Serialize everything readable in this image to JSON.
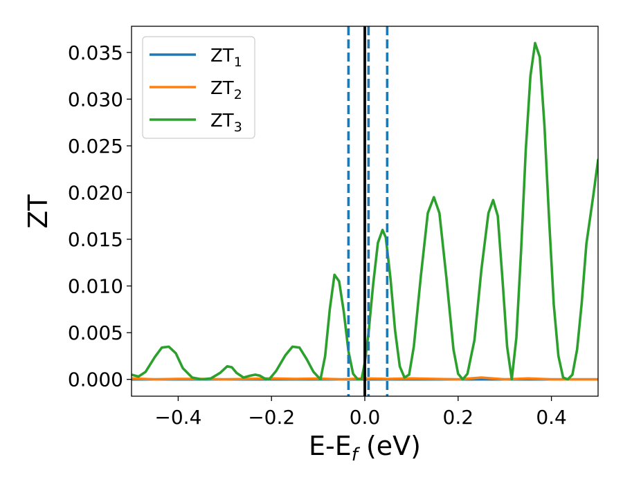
{
  "chart_data": {
    "type": "line",
    "xlabel": "E-E",
    "xlabel_sub": "f",
    "xlabel_unit": " (eV)",
    "ylabel": "ZT",
    "xlim": [
      -0.5,
      0.5
    ],
    "ylim": [
      -0.0018,
      0.0378
    ],
    "xticks": [
      -0.4,
      -0.2,
      0.0,
      0.2,
      0.4
    ],
    "xtick_labels": [
      "−0.4",
      "−0.2",
      "0.0",
      "0.2",
      "0.4"
    ],
    "yticks": [
      0.0,
      0.005,
      0.01,
      0.015,
      0.02,
      0.025,
      0.03,
      0.035
    ],
    "ytick_labels": [
      "0.000",
      "0.005",
      "0.010",
      "0.015",
      "0.020",
      "0.025",
      "0.030",
      "0.035"
    ],
    "grid": false,
    "legend_position": "top-left",
    "legend": [
      {
        "base": "ZT",
        "sub": "1",
        "color": "#1f77b4"
      },
      {
        "base": "ZT",
        "sub": "2",
        "color": "#ff7f0e"
      },
      {
        "base": "ZT",
        "sub": "3",
        "color": "#2ca02c"
      }
    ],
    "vlines": [
      {
        "x": -0.035,
        "style": "dashed",
        "color": "#1f77b4"
      },
      {
        "x": 0.008,
        "style": "dashed",
        "color": "#1f77b4"
      },
      {
        "x": 0.048,
        "style": "dashed",
        "color": "#1f77b4"
      },
      {
        "x": 0.0,
        "style": "solid",
        "color": "#000000"
      }
    ],
    "series": [
      {
        "name": "ZT₁",
        "color": "#1f77b4",
        "x": [
          -0.5,
          0.5
        ],
        "y": [
          0.0,
          0.0
        ]
      },
      {
        "name": "ZT₂",
        "color": "#ff7f0e",
        "x": [
          -0.5,
          -0.45,
          -0.4,
          -0.35,
          -0.3,
          -0.25,
          -0.2,
          -0.15,
          -0.1,
          -0.05,
          0.0,
          0.05,
          0.1,
          0.15,
          0.2,
          0.25,
          0.3,
          0.35,
          0.4,
          0.45,
          0.5
        ],
        "y": [
          0.0001,
          0.0,
          5e-05,
          5e-05,
          0.0,
          5e-05,
          0.0001,
          5e-05,
          8e-05,
          0.0,
          0.0001,
          5e-05,
          0.0001,
          5e-05,
          0.0,
          0.0002,
          0.0,
          0.0001,
          0.0,
          0.0,
          0.0
        ]
      },
      {
        "name": "ZT₃",
        "color": "#2ca02c",
        "x": [
          -0.5,
          -0.485,
          -0.47,
          -0.45,
          -0.435,
          -0.42,
          -0.405,
          -0.39,
          -0.37,
          -0.35,
          -0.33,
          -0.31,
          -0.295,
          -0.285,
          -0.275,
          -0.26,
          -0.245,
          -0.235,
          -0.225,
          -0.215,
          -0.205,
          -0.19,
          -0.17,
          -0.155,
          -0.14,
          -0.125,
          -0.11,
          -0.095,
          -0.085,
          -0.075,
          -0.065,
          -0.055,
          -0.045,
          -0.035,
          -0.025,
          -0.015,
          -0.007,
          0.0,
          0.008,
          0.018,
          0.028,
          0.038,
          0.045,
          0.055,
          0.065,
          0.075,
          0.085,
          0.095,
          0.105,
          0.12,
          0.135,
          0.148,
          0.16,
          0.175,
          0.19,
          0.2,
          0.21,
          0.22,
          0.235,
          0.25,
          0.265,
          0.275,
          0.285,
          0.295,
          0.305,
          0.315,
          0.325,
          0.335,
          0.345,
          0.355,
          0.365,
          0.375,
          0.385,
          0.395,
          0.405,
          0.415,
          0.425,
          0.435,
          0.445,
          0.455,
          0.465,
          0.475,
          0.49,
          0.5
        ],
        "y": [
          0.0005,
          0.0003,
          0.0008,
          0.0024,
          0.0034,
          0.0035,
          0.0028,
          0.0012,
          0.0002,
          0.0,
          0.0001,
          0.0007,
          0.0014,
          0.0013,
          0.0007,
          0.0002,
          0.0004,
          0.0005,
          0.0004,
          0.0001,
          0.0,
          0.0009,
          0.0026,
          0.0035,
          0.0034,
          0.0022,
          0.0008,
          0.0,
          0.0025,
          0.0075,
          0.0112,
          0.0105,
          0.0072,
          0.003,
          0.0006,
          0.0,
          0.0,
          0.0018,
          0.005,
          0.0102,
          0.0146,
          0.016,
          0.0152,
          0.0108,
          0.0052,
          0.0014,
          0.0002,
          0.0005,
          0.0035,
          0.011,
          0.0178,
          0.0195,
          0.0178,
          0.0108,
          0.0032,
          0.0006,
          0.0,
          0.0006,
          0.0042,
          0.0118,
          0.0178,
          0.0192,
          0.0175,
          0.0108,
          0.0035,
          0.0,
          0.0045,
          0.0138,
          0.0245,
          0.0325,
          0.036,
          0.0345,
          0.0272,
          0.0172,
          0.008,
          0.0025,
          0.0002,
          0.0,
          0.0005,
          0.0032,
          0.0082,
          0.0145,
          0.0198,
          0.0235
        ]
      }
    ]
  }
}
